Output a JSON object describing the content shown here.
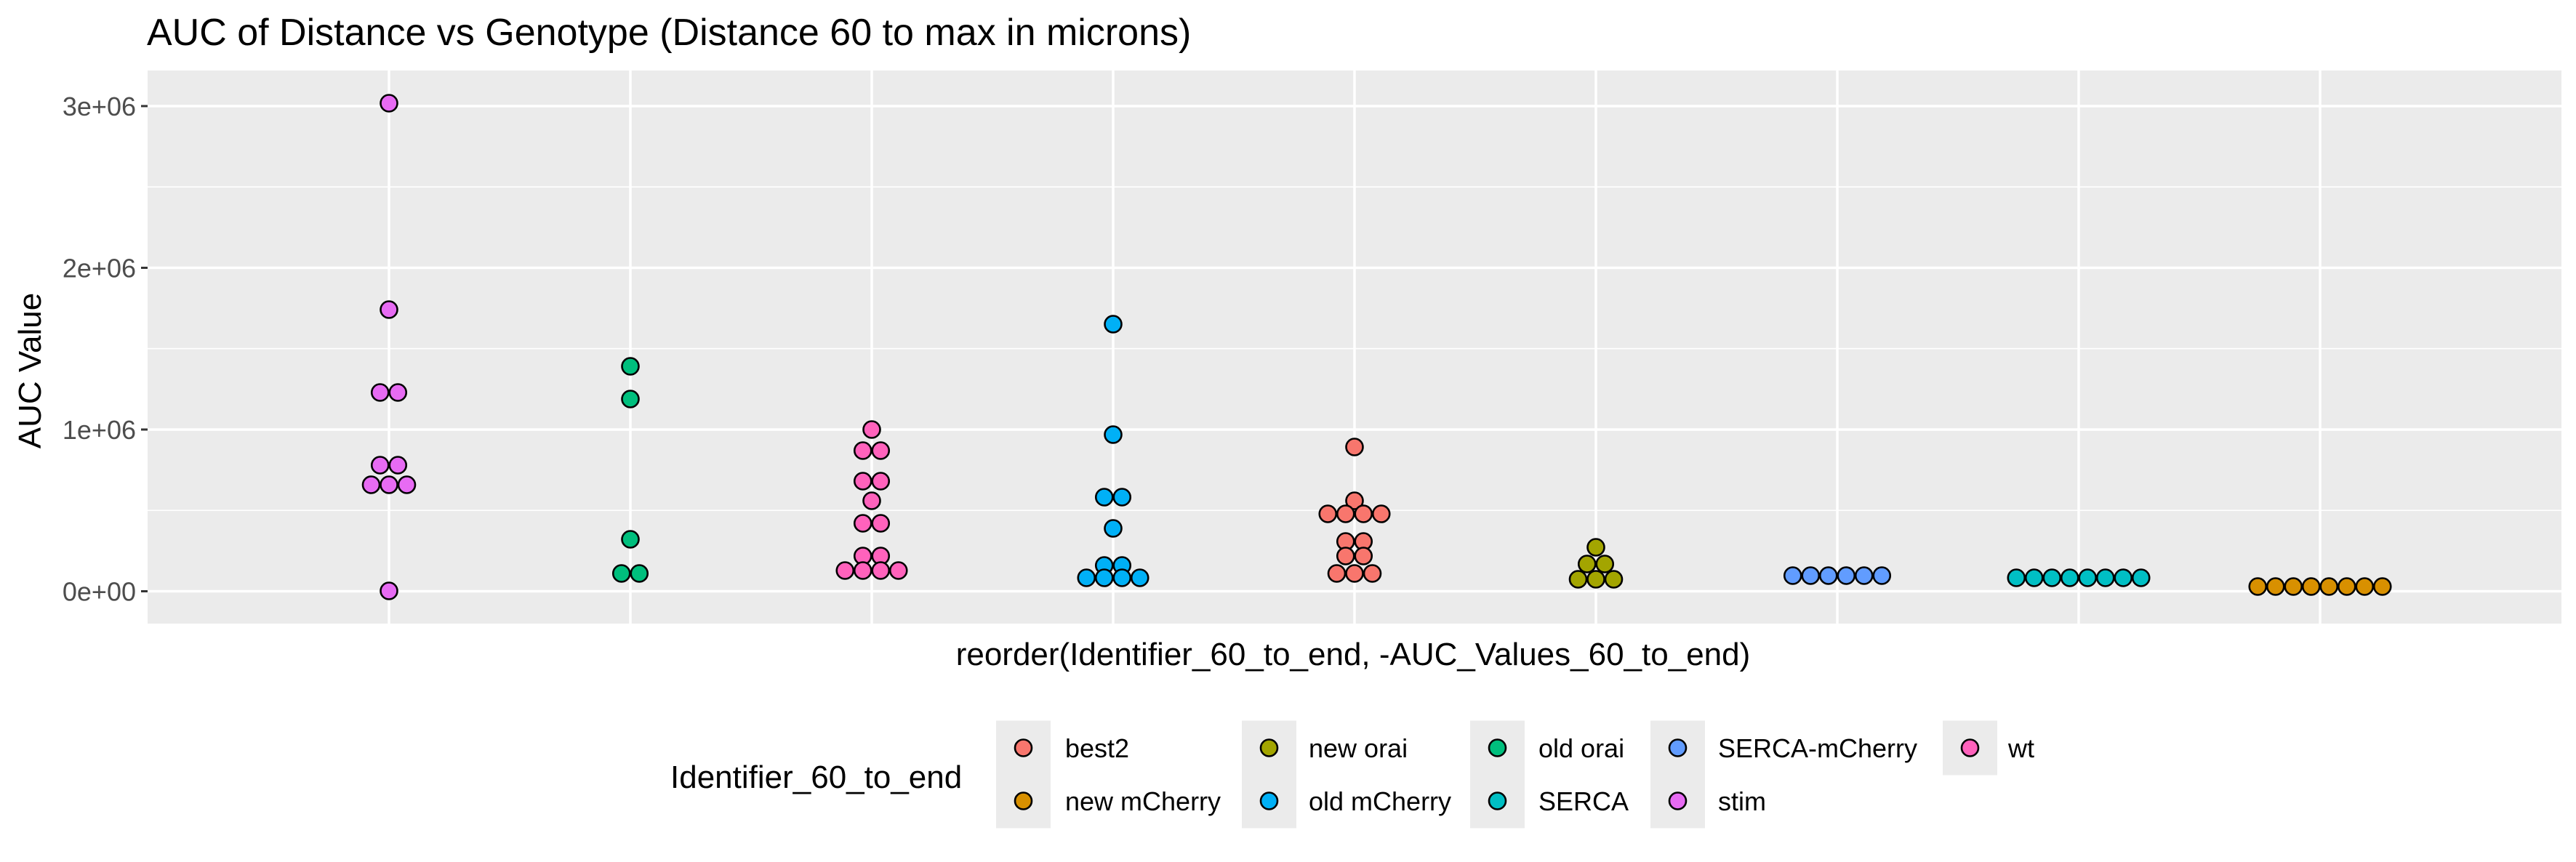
{
  "chart_data": {
    "type": "dotplot",
    "title": "AUC of Distance vs Genotype (Distance 60 to max in microns)",
    "xlabel": "reorder(Identifier_60_to_end, -AUC_Values_60_to_end)",
    "ylabel": "AUC Value",
    "ylim": [
      -200000,
      3220000
    ],
    "yticks": [
      0,
      1000000,
      2000000,
      3000000
    ],
    "ytick_labels": [
      "0e+00",
      "1e+06",
      "2e+06",
      "3e+06"
    ],
    "x_tick_labels_shown": false,
    "grid": true,
    "legend": {
      "title": "Identifier_60_to_end",
      "position": "bottom"
    },
    "series": [
      {
        "name": "stim",
        "color": "#E76BF3",
        "values": [
          3020000,
          1740000,
          1230000,
          1230000,
          780000,
          780000,
          660000,
          660000,
          660000,
          0
        ]
      },
      {
        "name": "old orai",
        "color": "#00BF7D",
        "values": [
          1390000,
          1190000,
          320000,
          110000,
          110000
        ]
      },
      {
        "name": "wt",
        "color": "#FF62BC",
        "values": [
          1000000,
          870000,
          870000,
          680000,
          680000,
          560000,
          420000,
          420000,
          220000,
          220000,
          130000,
          130000,
          130000,
          130000
        ]
      },
      {
        "name": "old mCherry",
        "color": "#00B0F6",
        "values": [
          1650000,
          970000,
          580000,
          580000,
          390000,
          160000,
          160000,
          85000,
          85000,
          85000,
          85000
        ]
      },
      {
        "name": "best2",
        "color": "#F8766D",
        "values": [
          890000,
          560000,
          480000,
          480000,
          480000,
          480000,
          310000,
          310000,
          220000,
          220000,
          110000,
          110000,
          110000
        ]
      },
      {
        "name": "new orai",
        "color": "#A3A500",
        "values": [
          270000,
          170000,
          170000,
          75000,
          75000,
          75000
        ]
      },
      {
        "name": "SERCA-mCherry",
        "color": "#619CFF",
        "values": [
          95000,
          95000,
          95000,
          95000,
          95000,
          95000
        ]
      },
      {
        "name": "SERCA",
        "color": "#00BFC4",
        "values": [
          85000,
          85000,
          85000,
          85000,
          85000,
          85000,
          85000,
          85000
        ]
      },
      {
        "name": "new mCherry",
        "color": "#D89000",
        "values": [
          30000,
          30000,
          30000,
          30000,
          30000,
          30000,
          30000,
          30000
        ]
      }
    ],
    "legend_order": [
      "best2",
      "new mCherry",
      "new orai",
      "old mCherry",
      "old orai",
      "SERCA",
      "SERCA-mCherry",
      "stim",
      "wt"
    ]
  }
}
